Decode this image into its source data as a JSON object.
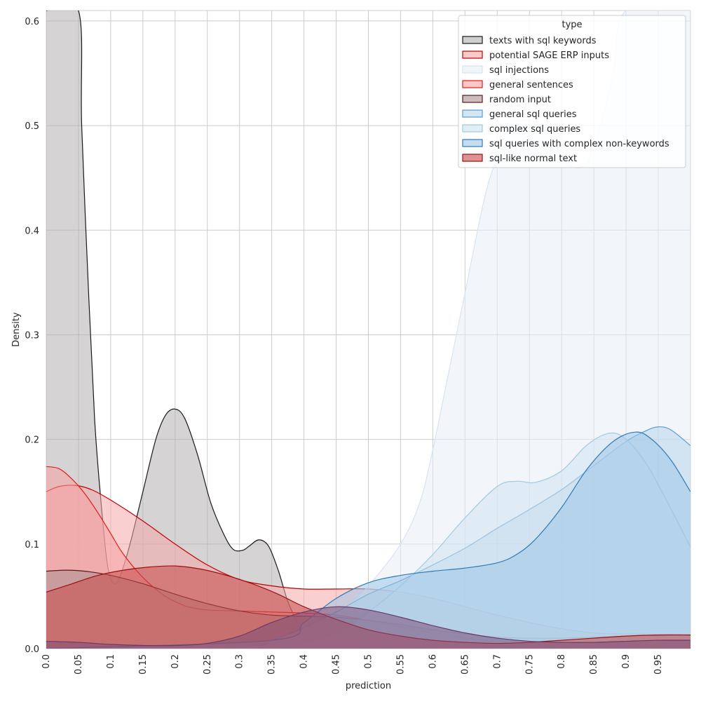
{
  "chart_data": {
    "type": "area",
    "xlabel": "prediction",
    "ylabel": "Density",
    "xlim": [
      0,
      1
    ],
    "ylim": [
      0,
      0.61
    ],
    "x_ticks": [
      "0.0",
      "0.05",
      "0.1",
      "0.15",
      "0.2",
      "0.25",
      "0.3",
      "0.35",
      "0.4",
      "0.45",
      "0.5",
      "0.55",
      "0.6",
      "0.65",
      "0.7",
      "0.75",
      "0.8",
      "0.85",
      "0.9",
      "0.95"
    ],
    "y_ticks": [
      "0.0",
      "0.1",
      "0.2",
      "0.3",
      "0.4",
      "0.5",
      "0.6"
    ],
    "grid": true,
    "legend": {
      "title": "type",
      "position": "top-right"
    },
    "series": [
      {
        "name": "texts with sql keywords",
        "fill": "#b3aeae",
        "stroke": "#1a1a1a",
        "points": [
          [
            0,
            0.61
          ],
          [
            0.05,
            0.61
          ],
          [
            0.055,
            0.5
          ],
          [
            0.065,
            0.35
          ],
          [
            0.075,
            0.22
          ],
          [
            0.085,
            0.14
          ],
          [
            0.095,
            0.08
          ],
          [
            0.105,
            0.062
          ],
          [
            0.115,
            0.07
          ],
          [
            0.13,
            0.1
          ],
          [
            0.15,
            0.15
          ],
          [
            0.17,
            0.2
          ],
          [
            0.185,
            0.223
          ],
          [
            0.2,
            0.229
          ],
          [
            0.215,
            0.22
          ],
          [
            0.235,
            0.185
          ],
          [
            0.255,
            0.14
          ],
          [
            0.275,
            0.11
          ],
          [
            0.29,
            0.095
          ],
          [
            0.305,
            0.094
          ],
          [
            0.315,
            0.098
          ],
          [
            0.33,
            0.104
          ],
          [
            0.345,
            0.098
          ],
          [
            0.36,
            0.075
          ],
          [
            0.375,
            0.045
          ],
          [
            0.39,
            0.025
          ],
          [
            0.4,
            0.013
          ],
          [
            0.42,
            0.005
          ],
          [
            0.435,
            0.001
          ]
        ]
      },
      {
        "name": "potential SAGE ERP inputs",
        "fill": "#f4a8a8",
        "stroke": "#c00000",
        "points": [
          [
            0,
            0.15
          ],
          [
            0.02,
            0.155
          ],
          [
            0.045,
            0.156
          ],
          [
            0.07,
            0.152
          ],
          [
            0.1,
            0.142
          ],
          [
            0.15,
            0.122
          ],
          [
            0.2,
            0.1
          ],
          [
            0.25,
            0.08
          ],
          [
            0.3,
            0.066
          ],
          [
            0.35,
            0.06
          ],
          [
            0.4,
            0.057
          ],
          [
            0.45,
            0.057
          ],
          [
            0.5,
            0.057
          ],
          [
            0.55,
            0.054
          ],
          [
            0.6,
            0.048
          ],
          [
            0.65,
            0.04
          ],
          [
            0.7,
            0.032
          ],
          [
            0.75,
            0.025
          ],
          [
            0.8,
            0.019
          ],
          [
            0.85,
            0.015
          ],
          [
            0.9,
            0.014
          ],
          [
            0.95,
            0.014
          ],
          [
            1,
            0.014
          ]
        ]
      },
      {
        "name": "sql injections",
        "fill": "#e8eef7",
        "stroke": "#d6e4f3",
        "points": [
          [
            0,
            0
          ],
          [
            0.3,
            0.001
          ],
          [
            0.4,
            0.012
          ],
          [
            0.45,
            0.03
          ],
          [
            0.5,
            0.06
          ],
          [
            0.55,
            0.1
          ],
          [
            0.58,
            0.14
          ],
          [
            0.6,
            0.19
          ],
          [
            0.62,
            0.25
          ],
          [
            0.65,
            0.34
          ],
          [
            0.68,
            0.43
          ],
          [
            0.7,
            0.47
          ],
          [
            0.72,
            0.5
          ],
          [
            0.75,
            0.505
          ],
          [
            0.78,
            0.495
          ],
          [
            0.8,
            0.47
          ],
          [
            0.82,
            0.46
          ],
          [
            0.84,
            0.465
          ],
          [
            0.86,
            0.5
          ],
          [
            0.88,
            0.55
          ],
          [
            0.9,
            0.61
          ],
          [
            1,
            0.61
          ]
        ]
      },
      {
        "name": "general sentences",
        "fill": "#f7a1a1",
        "stroke": "#e11d1d",
        "points": [
          [
            0,
            0.174
          ],
          [
            0.02,
            0.172
          ],
          [
            0.04,
            0.162
          ],
          [
            0.06,
            0.148
          ],
          [
            0.08,
            0.13
          ],
          [
            0.1,
            0.11
          ],
          [
            0.12,
            0.09
          ],
          [
            0.15,
            0.068
          ],
          [
            0.18,
            0.052
          ],
          [
            0.2,
            0.045
          ],
          [
            0.22,
            0.04
          ],
          [
            0.25,
            0.037
          ],
          [
            0.3,
            0.036
          ],
          [
            0.35,
            0.035
          ],
          [
            0.4,
            0.034
          ],
          [
            0.45,
            0.032
          ],
          [
            0.5,
            0.027
          ],
          [
            0.55,
            0.021
          ],
          [
            0.6,
            0.015
          ],
          [
            0.65,
            0.01
          ],
          [
            0.7,
            0.006
          ],
          [
            0.75,
            0.004
          ],
          [
            0.8,
            0.003
          ],
          [
            0.85,
            0.003
          ],
          [
            0.9,
            0.004
          ],
          [
            0.95,
            0.005
          ],
          [
            1,
            0.005
          ]
        ]
      },
      {
        "name": "random input",
        "fill": "#a98f94",
        "stroke": "#5c1a1a",
        "points": [
          [
            0,
            0.074
          ],
          [
            0.03,
            0.075
          ],
          [
            0.06,
            0.074
          ],
          [
            0.1,
            0.07
          ],
          [
            0.15,
            0.062
          ],
          [
            0.2,
            0.052
          ],
          [
            0.25,
            0.043
          ],
          [
            0.3,
            0.036
          ],
          [
            0.35,
            0.032
          ],
          [
            0.4,
            0.031
          ],
          [
            0.45,
            0.03
          ],
          [
            0.5,
            0.027
          ],
          [
            0.55,
            0.023
          ],
          [
            0.6,
            0.018
          ],
          [
            0.65,
            0.014
          ],
          [
            0.7,
            0.011
          ],
          [
            0.75,
            0.01
          ],
          [
            0.8,
            0.01
          ],
          [
            0.85,
            0.011
          ],
          [
            0.9,
            0.012
          ],
          [
            0.95,
            0.013
          ],
          [
            1,
            0.013
          ]
        ]
      },
      {
        "name": "general sql queries",
        "fill": "#b8d6ea",
        "stroke": "#5b9bd0",
        "points": [
          [
            0,
            0
          ],
          [
            0.3,
            0.002
          ],
          [
            0.35,
            0.008
          ],
          [
            0.4,
            0.02
          ],
          [
            0.45,
            0.035
          ],
          [
            0.5,
            0.052
          ],
          [
            0.55,
            0.065
          ],
          [
            0.6,
            0.08
          ],
          [
            0.65,
            0.096
          ],
          [
            0.7,
            0.115
          ],
          [
            0.75,
            0.133
          ],
          [
            0.8,
            0.152
          ],
          [
            0.85,
            0.175
          ],
          [
            0.9,
            0.198
          ],
          [
            0.93,
            0.208
          ],
          [
            0.95,
            0.212
          ],
          [
            0.97,
            0.209
          ],
          [
            1,
            0.194
          ]
        ]
      },
      {
        "name": "complex sql queries",
        "fill": "#cfe2f0",
        "stroke": "#9ecae1",
        "points": [
          [
            0,
            0
          ],
          [
            0.35,
            0.003
          ],
          [
            0.45,
            0.015
          ],
          [
            0.5,
            0.035
          ],
          [
            0.55,
            0.06
          ],
          [
            0.6,
            0.09
          ],
          [
            0.65,
            0.125
          ],
          [
            0.7,
            0.155
          ],
          [
            0.73,
            0.16
          ],
          [
            0.76,
            0.159
          ],
          [
            0.8,
            0.17
          ],
          [
            0.84,
            0.195
          ],
          [
            0.875,
            0.206
          ],
          [
            0.9,
            0.2
          ],
          [
            0.93,
            0.178
          ],
          [
            0.96,
            0.145
          ],
          [
            1,
            0.097
          ]
        ]
      },
      {
        "name": "sql queries with complex non-keywords",
        "fill": "#9fc7e6",
        "stroke": "#2f7ab8",
        "points": [
          [
            0,
            0
          ],
          [
            0.35,
            0.008
          ],
          [
            0.4,
            0.025
          ],
          [
            0.45,
            0.048
          ],
          [
            0.5,
            0.063
          ],
          [
            0.55,
            0.07
          ],
          [
            0.6,
            0.074
          ],
          [
            0.65,
            0.077
          ],
          [
            0.7,
            0.082
          ],
          [
            0.73,
            0.09
          ],
          [
            0.76,
            0.105
          ],
          [
            0.8,
            0.135
          ],
          [
            0.84,
            0.172
          ],
          [
            0.88,
            0.198
          ],
          [
            0.915,
            0.207
          ],
          [
            0.94,
            0.2
          ],
          [
            0.97,
            0.18
          ],
          [
            1,
            0.15
          ]
        ]
      },
      {
        "name": "sql-like normal text",
        "fill": "#c74b4b",
        "stroke": "#9e0f0f",
        "points": [
          [
            0,
            0.054
          ],
          [
            0.04,
            0.062
          ],
          [
            0.08,
            0.07
          ],
          [
            0.12,
            0.075
          ],
          [
            0.16,
            0.078
          ],
          [
            0.2,
            0.079
          ],
          [
            0.24,
            0.076
          ],
          [
            0.28,
            0.07
          ],
          [
            0.32,
            0.062
          ],
          [
            0.36,
            0.052
          ],
          [
            0.4,
            0.04
          ],
          [
            0.45,
            0.028
          ],
          [
            0.5,
            0.018
          ],
          [
            0.55,
            0.012
          ],
          [
            0.6,
            0.008
          ],
          [
            0.65,
            0.006
          ],
          [
            0.7,
            0.005
          ],
          [
            0.75,
            0.006
          ],
          [
            0.8,
            0.008
          ],
          [
            0.85,
            0.01
          ],
          [
            0.9,
            0.012
          ],
          [
            0.95,
            0.013
          ],
          [
            1,
            0.013
          ]
        ]
      },
      {
        "name": "",
        "fill": "#7d4f78",
        "stroke": "#6b3a66",
        "points": [
          [
            0,
            0.007
          ],
          [
            0.05,
            0.006
          ],
          [
            0.1,
            0.004
          ],
          [
            0.15,
            0.003
          ],
          [
            0.2,
            0.003
          ],
          [
            0.25,
            0.005
          ],
          [
            0.3,
            0.012
          ],
          [
            0.35,
            0.025
          ],
          [
            0.4,
            0.035
          ],
          [
            0.45,
            0.04
          ],
          [
            0.5,
            0.037
          ],
          [
            0.55,
            0.03
          ],
          [
            0.6,
            0.022
          ],
          [
            0.65,
            0.015
          ],
          [
            0.7,
            0.01
          ],
          [
            0.75,
            0.007
          ],
          [
            0.8,
            0.006
          ],
          [
            0.85,
            0.006
          ],
          [
            0.9,
            0.007
          ],
          [
            0.95,
            0.008
          ],
          [
            1,
            0.008
          ]
        ]
      }
    ]
  }
}
